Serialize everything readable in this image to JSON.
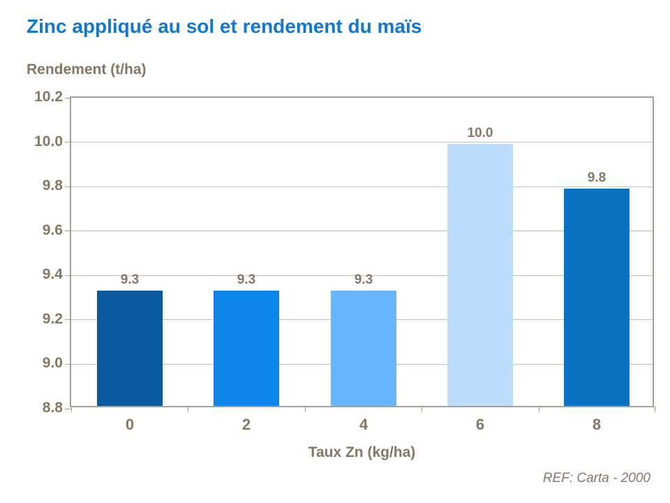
{
  "title": "Zinc appliqué au sol et rendement du maïs",
  "y_axis_title": "Rendement (t/ha)",
  "x_axis_title": "Taux Zn (kg/ha)",
  "ref_note": "REF: Carta - 2000",
  "colors": {
    "title_blue": "#1077D2",
    "axis_text_brown": "#877663",
    "gridline": "#C6BEB4",
    "plot_border": "#A89E93",
    "background": "#FFFFFF"
  },
  "chart_data": {
    "type": "bar",
    "title": "Zinc appliqué au sol et rendement du maïs",
    "xlabel": "Taux Zn (kg/ha)",
    "ylabel": "Rendement (t/ha)",
    "categories": [
      "0",
      "2",
      "4",
      "6",
      "8"
    ],
    "values": [
      9.32,
      9.32,
      9.32,
      9.98,
      9.78
    ],
    "data_labels": [
      "9.3",
      "9.3",
      "9.3",
      "10.0",
      "9.8"
    ],
    "bar_colors": [
      "#0B5A9D",
      "#0D85E8",
      "#69B6FA",
      "#B9DDFA",
      "#0A72C2"
    ],
    "ylim": [
      8.8,
      10.2
    ],
    "ytick_step": 0.2,
    "yticks": [
      "8.8",
      "9.0",
      "9.2",
      "9.4",
      "9.6",
      "9.8",
      "10.0",
      "10.2"
    ],
    "grid": true,
    "legend": false,
    "annotation": "REF: Carta - 2000"
  }
}
